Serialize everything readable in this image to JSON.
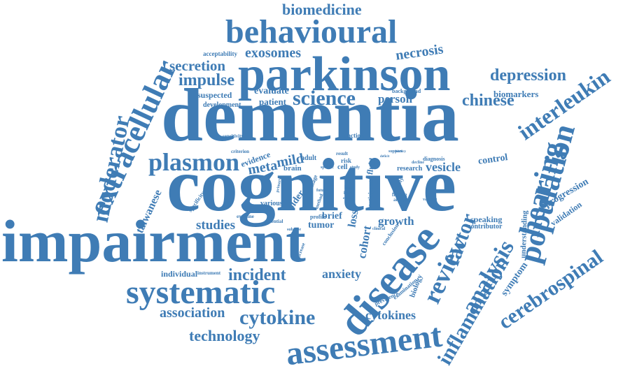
{
  "color": "#3f7cb5",
  "words": [
    {
      "text": "biomedicine"
    },
    {
      "text": "behavioural"
    },
    {
      "text": "parkinson"
    },
    {
      "text": "dementia"
    },
    {
      "text": "cognitive"
    },
    {
      "text": "impairment"
    },
    {
      "text": "systematic"
    },
    {
      "text": "assessment"
    },
    {
      "text": "disease"
    },
    {
      "text": "population"
    },
    {
      "text": "hearing"
    },
    {
      "text": "extracellular"
    },
    {
      "text": "moderator"
    },
    {
      "text": "plasmon"
    },
    {
      "text": "exosomes"
    },
    {
      "text": "secretion"
    },
    {
      "text": "impulse"
    },
    {
      "text": "necrosis"
    },
    {
      "text": "depression"
    },
    {
      "text": "biomarkers"
    },
    {
      "text": "interleukin"
    },
    {
      "text": "chinese"
    },
    {
      "text": "science"
    },
    {
      "text": "person"
    },
    {
      "text": "evaluate"
    },
    {
      "text": "patient"
    },
    {
      "text": "suspected"
    },
    {
      "text": "development"
    },
    {
      "text": "acceptability"
    },
    {
      "text": "background"
    },
    {
      "text": "sensitivity"
    },
    {
      "text": "function"
    },
    {
      "text": "criterion"
    },
    {
      "text": "evidence"
    },
    {
      "text": "meta"
    },
    {
      "text": "mild"
    },
    {
      "text": "adult"
    },
    {
      "text": "result"
    },
    {
      "text": "support"
    },
    {
      "text": "deficit"
    },
    {
      "text": "diagnosis"
    },
    {
      "text": "risk"
    },
    {
      "text": "decline"
    },
    {
      "text": "vesicle"
    },
    {
      "text": "control"
    },
    {
      "text": "research"
    },
    {
      "text": "brain"
    },
    {
      "text": "specific"
    },
    {
      "text": "cell"
    },
    {
      "text": "study"
    },
    {
      "text": "fluid"
    },
    {
      "text": "taiwanese"
    },
    {
      "text": "specificity"
    },
    {
      "text": "primary"
    },
    {
      "text": "stage"
    },
    {
      "text": "life"
    },
    {
      "text": "limit"
    },
    {
      "text": "level"
    },
    {
      "text": "effect"
    },
    {
      "text": "severity"
    },
    {
      "text": "finding"
    },
    {
      "text": "analyse"
    },
    {
      "text": "validate"
    },
    {
      "text": "older"
    },
    {
      "text": "various"
    },
    {
      "text": "future"
    },
    {
      "text": "method"
    },
    {
      "text": "participant"
    },
    {
      "text": "studies"
    },
    {
      "text": "examine"
    },
    {
      "text": "potential"
    },
    {
      "text": "profile"
    },
    {
      "text": "brief"
    },
    {
      "text": "tumor"
    },
    {
      "text": "loss"
    },
    {
      "text": "growth"
    },
    {
      "text": "clinical"
    },
    {
      "text": "subtype"
    },
    {
      "text": "cohort"
    },
    {
      "text": "conclusion"
    },
    {
      "text": "increase"
    },
    {
      "text": "review"
    },
    {
      "text": "factor"
    },
    {
      "text": "speaking"
    },
    {
      "text": "contributor"
    },
    {
      "text": "understanding"
    },
    {
      "text": "progression"
    },
    {
      "text": "validation"
    },
    {
      "text": "individual"
    },
    {
      "text": "instrument"
    },
    {
      "text": "incident"
    },
    {
      "text": "anxiety"
    },
    {
      "text": "prevalence"
    },
    {
      "text": "examination"
    },
    {
      "text": "biology"
    },
    {
      "text": "analysis"
    },
    {
      "text": "inflammation"
    },
    {
      "text": "symptom"
    },
    {
      "text": "cerebrospinal"
    },
    {
      "text": "association"
    },
    {
      "text": "cytokine"
    },
    {
      "text": "cytokines"
    },
    {
      "text": "technology"
    },
    {
      "text": "history"
    }
  ]
}
